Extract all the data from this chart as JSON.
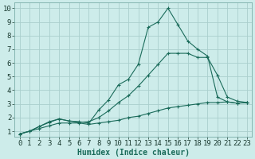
{
  "xlabel": "Humidex (Indice chaleur)",
  "background_color": "#cdecea",
  "grid_color": "#aacfcd",
  "line_color": "#1a6b5a",
  "xlim": [
    -0.5,
    23.5
  ],
  "ylim": [
    0.6,
    10.4
  ],
  "xticks": [
    0,
    1,
    2,
    3,
    4,
    5,
    6,
    7,
    8,
    9,
    10,
    11,
    12,
    13,
    14,
    15,
    16,
    17,
    18,
    19,
    20,
    21,
    22,
    23
  ],
  "yticks": [
    1,
    2,
    3,
    4,
    5,
    6,
    7,
    8,
    9,
    10
  ],
  "line1_x": [
    0,
    1,
    2,
    3,
    4,
    5,
    6,
    7,
    8,
    9,
    10,
    11,
    12,
    13,
    14,
    15,
    16,
    17,
    18,
    19,
    20,
    21,
    22,
    23
  ],
  "line1_y": [
    0.8,
    1.0,
    1.35,
    1.7,
    1.9,
    1.75,
    1.7,
    1.6,
    2.55,
    3.3,
    4.4,
    4.8,
    5.9,
    8.6,
    9.0,
    10.0,
    8.8,
    7.6,
    7.0,
    6.5,
    3.5,
    3.15,
    3.05,
    3.1
  ],
  "line2_x": [
    0,
    1,
    2,
    3,
    4,
    5,
    6,
    7,
    8,
    9,
    10,
    11,
    12,
    13,
    14,
    15,
    16,
    17,
    18,
    19,
    20,
    21,
    22,
    23
  ],
  "line2_y": [
    0.8,
    1.0,
    1.35,
    1.65,
    1.9,
    1.75,
    1.65,
    1.7,
    2.0,
    2.5,
    3.1,
    3.6,
    4.3,
    5.1,
    5.9,
    6.7,
    6.7,
    6.7,
    6.4,
    6.4,
    5.1,
    3.5,
    3.2,
    3.1
  ],
  "line3_x": [
    0,
    1,
    2,
    3,
    4,
    5,
    6,
    7,
    8,
    9,
    10,
    11,
    12,
    13,
    14,
    15,
    16,
    17,
    18,
    19,
    20,
    21,
    22,
    23
  ],
  "line3_y": [
    0.8,
    1.0,
    1.2,
    1.4,
    1.6,
    1.6,
    1.6,
    1.5,
    1.6,
    1.7,
    1.8,
    2.0,
    2.1,
    2.3,
    2.5,
    2.7,
    2.8,
    2.9,
    3.0,
    3.1,
    3.1,
    3.15,
    3.05,
    3.1
  ],
  "marker": "+",
  "markersize": 3,
  "linewidth": 0.8,
  "xlabel_fontsize": 7,
  "tick_fontsize": 6.5
}
